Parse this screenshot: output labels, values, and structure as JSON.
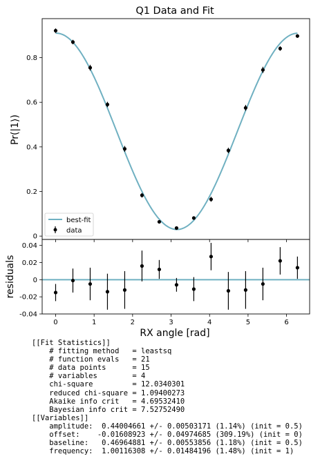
{
  "chart_data": [
    {
      "type": "scatter",
      "title": "Q1 Data and Fit",
      "ylabel": "Pr(|1⟩)",
      "xlim": [
        -0.35,
        6.6
      ],
      "ylim": [
        -0.015,
        0.975
      ],
      "yticks": [
        0,
        0.2,
        0.4,
        0.6,
        0.8
      ],
      "ytick_labels": [
        "0",
        "0.2",
        "0.4",
        "0.6",
        "0.8"
      ],
      "legend": "lower-left",
      "series": [
        {
          "name": "best-fit",
          "type": "line",
          "color": "#6fb0c1",
          "model": "baseline + amplitude*cos(frequency*x + offset)",
          "params": {
            "amplitude": 0.44004661,
            "offset": -0.01608923,
            "baseline": 0.46964881,
            "frequency": 1.00116308
          },
          "x_range": [
            0,
            6.2832
          ]
        },
        {
          "name": "data",
          "type": "errorbar",
          "color": "#000000",
          "x": [
            0,
            0.4488,
            0.8976,
            1.3464,
            1.7952,
            2.244,
            2.6928,
            3.1416,
            3.5904,
            4.0392,
            4.488,
            4.9368,
            5.3856,
            5.8344,
            6.2832
          ],
          "y": [
            0.921,
            0.87,
            0.755,
            0.59,
            0.391,
            0.183,
            0.064,
            0.036,
            0.081,
            0.165,
            0.384,
            0.575,
            0.745,
            0.841,
            0.897
          ],
          "yerr": [
            0.01,
            0.01,
            0.013,
            0.012,
            0.013,
            0.01,
            0.006,
            0.005,
            0.008,
            0.011,
            0.012,
            0.013,
            0.014,
            0.01,
            0.008
          ]
        }
      ]
    },
    {
      "type": "scatter",
      "ylabel": "residuals",
      "xlabel": "RX angle [rad]",
      "xlim": [
        -0.35,
        6.6
      ],
      "ylim": [
        -0.04,
        0.047
      ],
      "yticks": [
        -0.04,
        -0.02,
        0,
        0.02,
        0.04
      ],
      "ytick_labels": [
        "-0.04",
        "-0.02",
        "0",
        "0.02",
        "0.04"
      ],
      "xticks": [
        0,
        1,
        2,
        3,
        4,
        5,
        6
      ],
      "xtick_labels": [
        "0",
        "1",
        "2",
        "3",
        "4",
        "5",
        "6"
      ],
      "zero_line_color": "#6fb0c1",
      "series": [
        {
          "type": "errorbar",
          "color": "#000000",
          "x": [
            0,
            0.4488,
            0.8976,
            1.3464,
            1.7952,
            2.244,
            2.6928,
            3.1416,
            3.5904,
            4.0392,
            4.488,
            4.9368,
            5.3856,
            5.8344,
            6.2832
          ],
          "y": [
            -0.015,
            -0.001,
            -0.005,
            -0.014,
            -0.012,
            0.016,
            0.012,
            -0.006,
            -0.011,
            0.027,
            -0.013,
            -0.012,
            -0.005,
            0.022,
            0.014
          ],
          "yerr": [
            0.01,
            0.014,
            0.019,
            0.021,
            0.022,
            0.018,
            0.011,
            0.008,
            0.014,
            0.016,
            0.022,
            0.022,
            0.019,
            0.016,
            0.013
          ]
        }
      ]
    }
  ],
  "fit_report": {
    "lines": [
      "[[Fit Statistics]]",
      "    # fitting method   = leastsq",
      "    # function evals   = 21",
      "    # data points      = 15",
      "    # variables        = 4",
      "    chi-square         = 12.0340301",
      "    reduced chi-square = 1.09400273",
      "    Akaike info crit   = 4.69532410",
      "    Bayesian info crit = 7.52752490",
      "[[Variables]]",
      "    amplitude:  0.44004661 +/- 0.00503171 (1.14%) (init = 0.5)",
      "    offset:    -0.01608923 +/- 0.04974685 (309.19%) (init = 0)",
      "    baseline:   0.46964881 +/- 0.00553856 (1.18%) (init = 0.5)",
      "    frequency:  1.00116308 +/- 0.01484196 (1.48%) (init = 1)"
    ]
  }
}
